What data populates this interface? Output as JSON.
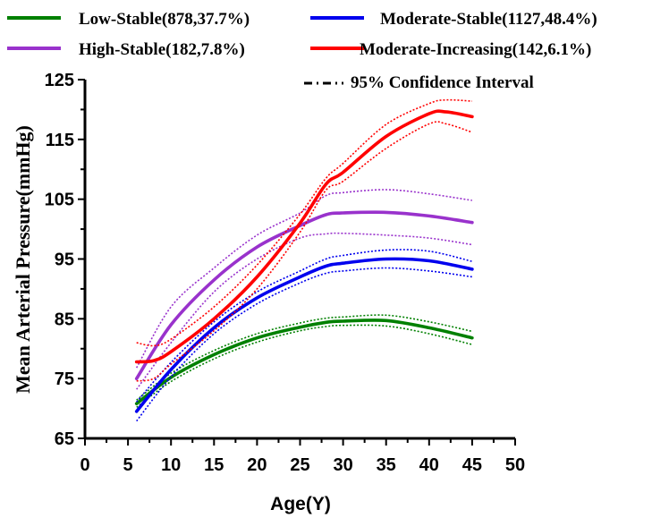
{
  "chart_data": {
    "type": "line",
    "xlabel": "Age(Y)",
    "ylabel": "Mean Arterial Pressure(mmHg)",
    "xlim": [
      0,
      50
    ],
    "ylim": [
      65,
      125
    ],
    "xticks": [
      "0",
      "5",
      "10",
      "15",
      "20",
      "25",
      "30",
      "35",
      "40",
      "45",
      "50"
    ],
    "yticks": [
      "65",
      "75",
      "85",
      "95",
      "105",
      "115",
      "125"
    ],
    "xtick_values": [
      0,
      5,
      10,
      15,
      20,
      25,
      30,
      35,
      40,
      45,
      50
    ],
    "ytick_values": [
      65,
      75,
      85,
      95,
      105,
      115,
      125
    ],
    "grid": false,
    "legend_position": "top",
    "ci_label": "95% Confidence Interval",
    "series": [
      {
        "name": "Low-Stable(878,37.7%)",
        "color": "#008000",
        "x": [
          6,
          10,
          15,
          20,
          25,
          28,
          30,
          35,
          40,
          45
        ],
        "y": [
          70.8,
          75.2,
          79,
          81.8,
          83.6,
          84.4,
          84.6,
          84.7,
          83.5,
          81.8
        ],
        "lower": [
          70.2,
          74.5,
          78.3,
          81.1,
          83.0,
          83.7,
          83.9,
          83.8,
          82.5,
          80.7
        ],
        "upper": [
          71.4,
          75.9,
          79.7,
          82.5,
          84.3,
          85.1,
          85.3,
          85.6,
          84.5,
          82.9
        ]
      },
      {
        "name": "Moderate-Stable(1127,48.4%)",
        "color": "#0000ee",
        "x": [
          6,
          10,
          15,
          20,
          25,
          28,
          30,
          35,
          40,
          45
        ],
        "y": [
          69.5,
          76.5,
          83.5,
          88.5,
          92.0,
          93.8,
          94.3,
          95.0,
          94.7,
          93.3
        ],
        "lower": [
          67.9,
          75.3,
          82.5,
          87.5,
          91.0,
          92.6,
          93.0,
          93.5,
          93.0,
          92.0
        ],
        "upper": [
          71.1,
          77.7,
          84.5,
          89.5,
          93.0,
          95.0,
          95.6,
          96.5,
          96.3,
          94.6
        ]
      },
      {
        "name": "High-Stable(182,7.8%)",
        "color": "#9932cc",
        "x": [
          6,
          10,
          15,
          20,
          25,
          28,
          30,
          35,
          40,
          45
        ],
        "y": [
          75.0,
          84.0,
          91.5,
          97.0,
          100.6,
          102.4,
          102.7,
          102.8,
          102.2,
          101.1
        ],
        "lower": [
          73.2,
          81.0,
          89.5,
          95.0,
          98.5,
          99.2,
          99.3,
          99.0,
          98.5,
          97.4
        ],
        "upper": [
          76.8,
          87.0,
          93.5,
          99.0,
          102.7,
          105.6,
          106.1,
          106.6,
          105.9,
          104.8
        ]
      },
      {
        "name": "Moderate-Increasing(142,6.1%)",
        "color": "#ff0000",
        "x": [
          6,
          8,
          10,
          15,
          20,
          25,
          28,
          30,
          35,
          40,
          42,
          45
        ],
        "y": [
          77.8,
          78.0,
          79.5,
          85.0,
          92.0,
          101.0,
          107.5,
          109.5,
          115.5,
          119.3,
          119.6,
          118.8
        ],
        "lower": [
          74.6,
          75.0,
          77.4,
          83.0,
          90.0,
          99.5,
          106.5,
          108.0,
          113.5,
          117.6,
          117.6,
          116.2
        ],
        "upper": [
          81.0,
          80.5,
          81.6,
          87.0,
          94.0,
          102.5,
          108.5,
          111.0,
          117.5,
          121.0,
          121.6,
          121.4
        ]
      }
    ]
  }
}
